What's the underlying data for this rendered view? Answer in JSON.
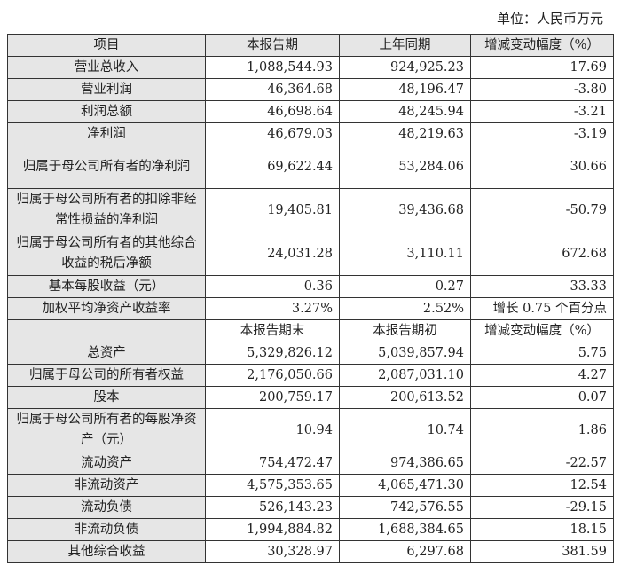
{
  "unit_label": "单位：人民币万元",
  "header": [
    "项目",
    "本报告期",
    "上年同期",
    "增减变动幅度（%）"
  ],
  "rows_period": [
    {
      "item": "营业总收入",
      "current": "1,088,544.93",
      "prior": "924,925.23",
      "change": "17.69"
    },
    {
      "item": "营业利润",
      "current": "46,364.68",
      "prior": "48,196.47",
      "change": "-3.80"
    },
    {
      "item": "利润总额",
      "current": "46,698.64",
      "prior": "48,245.94",
      "change": "-3.21"
    },
    {
      "item": "净利润",
      "current": "46,679.03",
      "prior": "48,219.63",
      "change": "-3.19"
    },
    {
      "item": "归属于母公司所有者的净利润",
      "current": "69,622.44",
      "prior": "53,284.06",
      "change": "30.66",
      "tall": true
    },
    {
      "item": "归属于母公司所有者的扣除非经常性损益的净利润",
      "current": "19,405.81",
      "prior": "39,436.68",
      "change": "-50.79",
      "tall": true
    },
    {
      "item": "归属于母公司所有者的其他综合收益的税后净额",
      "current": "24,031.28",
      "prior": "3,110.11",
      "change": "672.68",
      "tall": true
    },
    {
      "item": "基本每股收益（元）",
      "current": "0.36",
      "prior": "0.27",
      "change": "33.33"
    },
    {
      "item": "加权平均净资产收益率",
      "current": "3.27%",
      "prior": "2.52%",
      "change": "增长 0.75 个百分点"
    }
  ],
  "subheader": [
    "",
    "本报告期末",
    "本报告期初",
    "增减变动幅度（%）"
  ],
  "rows_balance": [
    {
      "item": "总资产",
      "current": "5,329,826.12",
      "prior": "5,039,857.94",
      "change": "5.75"
    },
    {
      "item": "归属于母公司的所有者权益",
      "current": "2,176,050.66",
      "prior": "2,087,031.10",
      "change": "4.27"
    },
    {
      "item": "股本",
      "current": "200,759.17",
      "prior": "200,613.52",
      "change": "0.07"
    },
    {
      "item": "归属于母公司所有者的每股净资产（元）",
      "current": "10.94",
      "prior": "10.74",
      "change": "1.86",
      "tall": true
    },
    {
      "item": "流动资产",
      "current": "754,472.47",
      "prior": "974,386.65",
      "change": "-22.57"
    },
    {
      "item": "非流动资产",
      "current": "4,575,353.65",
      "prior": "4,065,471.30",
      "change": "12.54"
    },
    {
      "item": "流动负债",
      "current": "526,143.23",
      "prior": "742,576.55",
      "change": "-29.15"
    },
    {
      "item": "非流动负债",
      "current": "1,994,884.82",
      "prior": "1,688,384.65",
      "change": "18.15"
    },
    {
      "item": "其他综合收益",
      "current": "30,328.97",
      "prior": "6,297.68",
      "change": "381.59"
    }
  ]
}
